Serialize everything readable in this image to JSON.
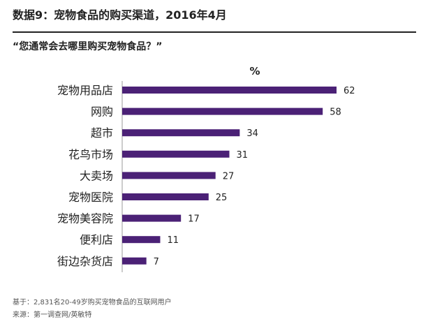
{
  "title": "数据9：宠物食品的购买渠道，2016年4月",
  "subtitle": "“您通常会去哪里购买宠物食品？”",
  "footer": {
    "base": "基于：2,831名20-49岁购买宠物食品的互联网用户",
    "source": "来源：第一调查网/英敏特"
  },
  "chart_data": {
    "type": "bar",
    "orientation": "horizontal",
    "title": "数据9：宠物食品的购买渠道，2016年4月",
    "subtitle": "“您通常会去哪里购买宠物食品？”",
    "unit_label": "%",
    "categories": [
      "宠物用品店",
      "网购",
      "超市",
      "花鸟市场",
      "大卖场",
      "宠物医院",
      "宠物美容院",
      "便利店",
      "街边杂货店"
    ],
    "values": [
      62,
      58,
      34,
      31,
      27,
      25,
      17,
      11,
      7
    ],
    "xlim": [
      0,
      62
    ],
    "bar_color": "#4B2176",
    "grid": false,
    "legend": "none"
  }
}
